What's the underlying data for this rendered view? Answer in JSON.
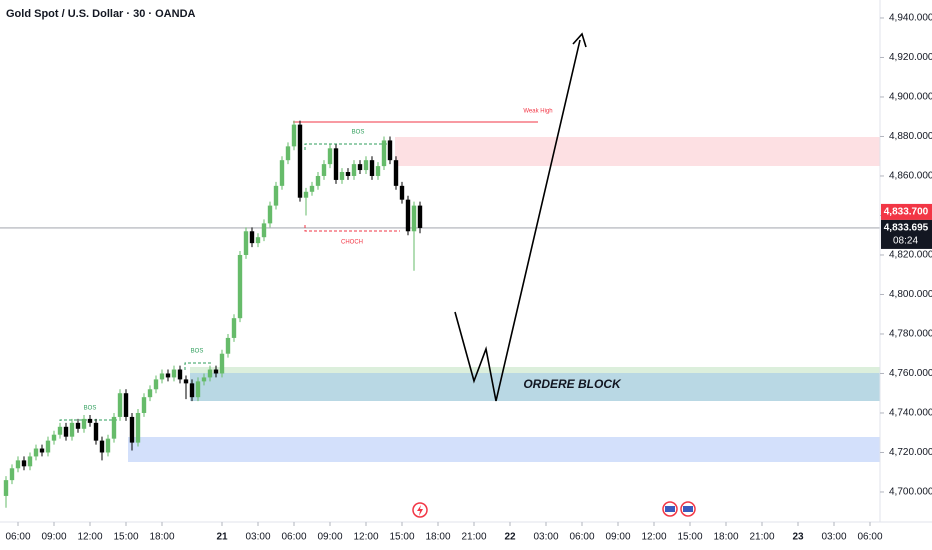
{
  "chart_data": {
    "type": "candlestick",
    "title": "Gold Spot / U.S. Dollar · 30 · OANDA",
    "up_color": "#66bb6a",
    "down_color": "#000000",
    "open": [
      4698,
      4706,
      4712,
      4716,
      4713,
      4718,
      4722,
      4720,
      4726,
      4729,
      4733,
      4728,
      4735,
      4732,
      4737,
      4735,
      4726,
      4720,
      4727,
      4738,
      4750,
      4738,
      4725,
      4740,
      4748,
      4752,
      4757,
      4760,
      4758,
      4762,
      4757,
      4755,
      4748,
      4756,
      4758,
      4762,
      4760,
      4770,
      4778,
      4788,
      4820,
      4832,
      4826,
      4829,
      4836,
      4845,
      4855,
      4868,
      4875,
      4886,
      4849,
      4852,
      4855,
      4860,
      4866,
      4874,
      4858,
      4862,
      4860,
      4866,
      4863,
      4868,
      4860,
      4865,
      4878,
      4868,
      4855,
      4848,
      4832,
      4845
    ],
    "high": [
      4708,
      4714,
      4718,
      4718,
      4720,
      4724,
      4724,
      4728,
      4731,
      4735,
      4735,
      4737,
      4737,
      4739,
      4739,
      4737,
      4728,
      4729,
      4740,
      4752,
      4752,
      4740,
      4742,
      4750,
      4754,
      4759,
      4762,
      4762,
      4764,
      4764,
      4759,
      4757,
      4758,
      4760,
      4764,
      4764,
      4772,
      4780,
      4790,
      4822,
      4834,
      4834,
      4831,
      4838,
      4847,
      4857,
      4870,
      4877,
      4888,
      4888,
      4854,
      4857,
      4862,
      4868,
      4876,
      4876,
      4864,
      4864,
      4868,
      4868,
      4870,
      4870,
      4867,
      4880,
      4880,
      4870,
      4857,
      4850,
      4847,
      4847
    ],
    "low": [
      4692,
      4704,
      4710,
      4711,
      4711,
      4716,
      4718,
      4718,
      4724,
      4727,
      4726,
      4726,
      4730,
      4730,
      4733,
      4724,
      4716,
      4718,
      4725,
      4736,
      4736,
      4721,
      4723,
      4738,
      4746,
      4750,
      4755,
      4756,
      4756,
      4755,
      4747,
      4746,
      4746,
      4754,
      4756,
      4758,
      4758,
      4768,
      4776,
      4786,
      4818,
      4824,
      4824,
      4827,
      4834,
      4843,
      4853,
      4866,
      4873,
      4847,
      4840,
      4850,
      4853,
      4858,
      4864,
      4856,
      4856,
      4858,
      4858,
      4861,
      4861,
      4858,
      4858,
      4863,
      4866,
      4853,
      4846,
      4830,
      4812,
      4831
    ],
    "close": [
      4706,
      4712,
      4716,
      4713,
      4718,
      4722,
      4720,
      4726,
      4729,
      4733,
      4728,
      4735,
      4732,
      4737,
      4735,
      4726,
      4720,
      4727,
      4738,
      4750,
      4738,
      4725,
      4740,
      4748,
      4752,
      4757,
      4760,
      4758,
      4762,
      4757,
      4755,
      4748,
      4756,
      4758,
      4762,
      4760,
      4770,
      4778,
      4788,
      4820,
      4832,
      4826,
      4829,
      4836,
      4845,
      4855,
      4868,
      4875,
      4886,
      4849,
      4852,
      4855,
      4860,
      4866,
      4874,
      4858,
      4862,
      4860,
      4866,
      4863,
      4868,
      4860,
      4865,
      4878,
      4868,
      4855,
      4848,
      4832,
      4845,
      4833.695
    ],
    "ylim": [
      4684.8,
      4949.1
    ],
    "yticks": [
      {
        "value": 4700,
        "label": "4,700.000"
      },
      {
        "value": 4720,
        "label": "4,720.000"
      },
      {
        "value": 4740,
        "label": "4,740.000"
      },
      {
        "value": 4760,
        "label": "4,760.000"
      },
      {
        "value": 4780,
        "label": "4,780.000"
      },
      {
        "value": 4800,
        "label": "4,800.000"
      },
      {
        "value": 4820,
        "label": "4,820.000"
      },
      {
        "value": 4840,
        "label": "4,840.000"
      },
      {
        "value": 4860,
        "label": "4,860.000"
      },
      {
        "value": 4880,
        "label": "4,880.000"
      },
      {
        "value": 4900,
        "label": "4,900.000"
      },
      {
        "value": 4920,
        "label": "4,920.000"
      },
      {
        "value": 4940,
        "label": "4,940.000"
      }
    ],
    "xlim": [
      -1,
      145.5
    ],
    "xticks": [
      {
        "value": 2,
        "label": "06:00"
      },
      {
        "value": 8,
        "label": "09:00"
      },
      {
        "value": 14,
        "label": "12:00"
      },
      {
        "value": 20,
        "label": "15:00"
      },
      {
        "value": 26,
        "label": "18:00"
      },
      {
        "value": 36,
        "label": "21"
      },
      {
        "value": 42,
        "label": "03:00"
      },
      {
        "value": 48,
        "label": "06:00"
      },
      {
        "value": 54,
        "label": "09:00"
      },
      {
        "value": 60,
        "label": "12:00"
      },
      {
        "value": 66,
        "label": "15:00"
      },
      {
        "value": 72,
        "label": "18:00"
      },
      {
        "value": 78,
        "label": "21:00"
      },
      {
        "value": 84,
        "label": "22"
      },
      {
        "value": 90,
        "label": "03:00"
      },
      {
        "value": 96,
        "label": "06:00"
      },
      {
        "value": 102,
        "label": "09:00"
      },
      {
        "value": 108,
        "label": "12:00"
      },
      {
        "value": 114,
        "label": "15:00"
      },
      {
        "value": 120,
        "label": "18:00"
      },
      {
        "value": 126,
        "label": "21:00"
      },
      {
        "value": 132,
        "label": "23"
      },
      {
        "value": 138,
        "label": "03:00"
      },
      {
        "value": 144,
        "label": "06:00"
      }
    ],
    "price_labels": [
      {
        "value": 4833.7,
        "label": "4,833.700",
        "color": "#f23645"
      },
      {
        "value": 4833.695,
        "label": "4,833.695",
        "color": "#131722"
      }
    ],
    "countdown": "08:24",
    "annotations": [
      "BOS",
      "BOS",
      "BOS",
      "CHOCH",
      "Weak High",
      "ORDERE BLOCK"
    ]
  }
}
